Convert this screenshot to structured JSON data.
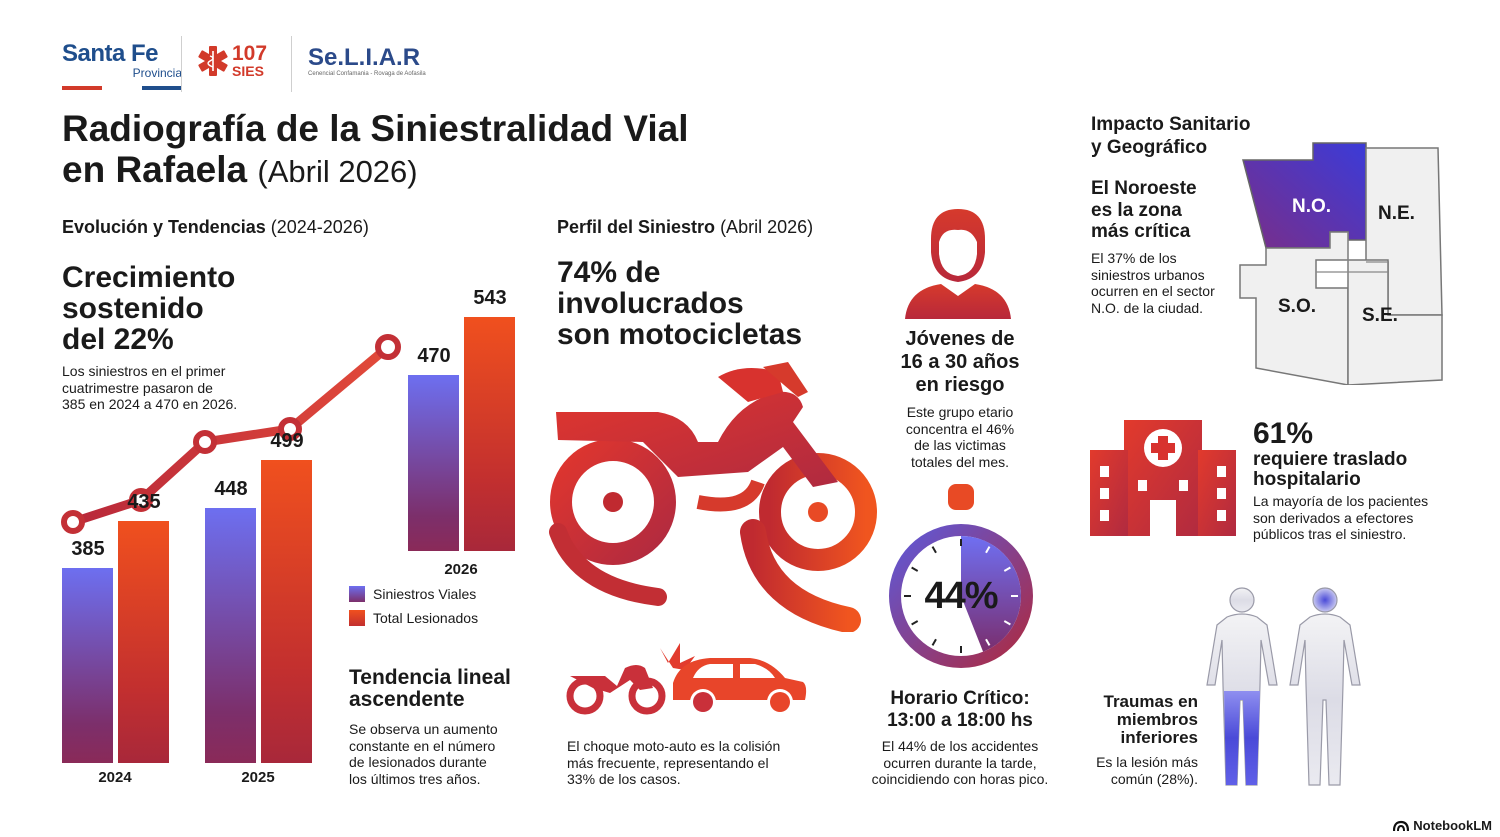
{
  "logos": {
    "santa_fe": {
      "name": "Santa Fe",
      "sub": "Provincia"
    },
    "sies": {
      "num": "107",
      "sub": "SIES"
    },
    "seliar": {
      "name": "Se.L.I.A.R",
      "sub": "Cenencial Confamania - Rovaga de Aofasila"
    }
  },
  "title": {
    "line1": "Radiografía de la Siniestralidad Vial",
    "line2": "en Rafaela",
    "suffix": "(Abril 2026)"
  },
  "evolution": {
    "heading": "Evolución y Tendencias",
    "heading_range": "(2024-2026)",
    "headline": [
      "Crecimiento",
      "sostenido",
      "del 22%"
    ],
    "desc": [
      "Los siniestros en el primer",
      "cuatrimestre pasaron de",
      "385 en 2024 a 470 en 2026."
    ],
    "trend_title": [
      "Tendencia lineal",
      "ascendente"
    ],
    "trend_desc": [
      "Se observa un aumento",
      "constante en el número",
      "de lesionados durante",
      "los últimos tres años."
    ],
    "legend": [
      "Siniestros Viales",
      "Total Lesionados"
    ]
  },
  "chart_data": {
    "type": "bar",
    "categories": [
      "2024",
      "2025",
      "2026"
    ],
    "series": [
      {
        "name": "Siniestros Viales",
        "values": [
          385,
          448,
          470
        ]
      },
      {
        "name": "Total Lesionados",
        "values": [
          435,
          499,
          543
        ]
      }
    ],
    "ylim": [
      0,
      600
    ],
    "colors": {
      "siniestros": "#6d6ff0",
      "lesionados": "#f0501e"
    }
  },
  "profile": {
    "heading": "Perfil del Siniestro",
    "heading_range": "(Abril 2026)",
    "headline": [
      "74% de",
      "involucrados",
      "son motocicletas"
    ],
    "collision_desc": [
      "El choque moto-auto es la colisión",
      "más frecuente, representando el",
      "33% de los casos."
    ],
    "youth_title": [
      "Jóvenes de",
      "16 a 30 años",
      "en riesgo"
    ],
    "youth_desc": [
      "Este grupo etario",
      "concentra el 46%",
      "de las victimas",
      "totales del mes."
    ],
    "clock_percent": "44%",
    "clock_fraction": 0.44,
    "hours_title": [
      "Horario Crítico:",
      "13:00 a 18:00 hs"
    ],
    "hours_desc": [
      "El 44% de los accidentes",
      "ocurren durante la tarde,",
      "coincidiendo con horas pico."
    ]
  },
  "impact": {
    "heading": [
      "Impacto Sanitario",
      "y Geográfico"
    ],
    "zone_title": [
      "El Noroeste",
      "es la zona",
      "más crítica"
    ],
    "zone_desc": [
      "El 37% de los",
      "siniestros urbanos",
      "ocurren en el sector",
      "N.O. de la ciudad."
    ],
    "zones": [
      "N.O.",
      "N.E.",
      "S.O.",
      "S.E."
    ],
    "hospital_percent": "61%",
    "hospital_title": [
      "requiere traslado",
      "hospitalario"
    ],
    "hospital_desc": [
      "La mayoría de los pacientes",
      "son derivados a efectores",
      "públicos tras el siniestro."
    ],
    "trauma_title": [
      "Traumas en",
      "miembros",
      "inferiores"
    ],
    "trauma_desc": [
      "Es la lesión más",
      "común (28%)."
    ]
  },
  "footer": {
    "brand": "NotebookLM"
  }
}
